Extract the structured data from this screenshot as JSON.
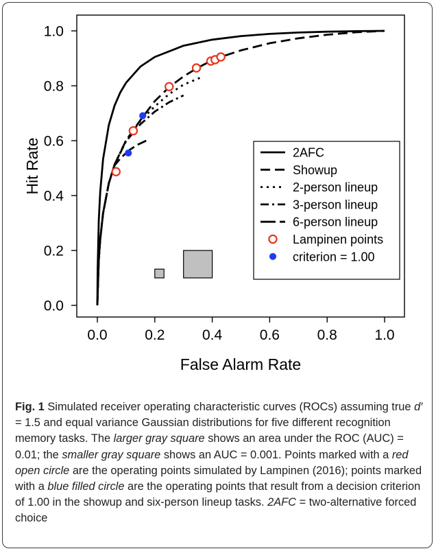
{
  "chart_data": {
    "type": "line",
    "xlabel": "False Alarm Rate",
    "ylabel": "Hit Rate",
    "xlim": [
      0,
      1
    ],
    "ylim": [
      0,
      1
    ],
    "xticks": [
      "0.0",
      "0.2",
      "0.4",
      "0.6",
      "0.8",
      "1.0"
    ],
    "yticks": [
      "0.0",
      "0.2",
      "0.4",
      "0.6",
      "0.8",
      "1.0"
    ],
    "grid": false,
    "legend_position": "center-right",
    "series": [
      {
        "name": "2AFC",
        "style": "solid",
        "x": [
          0,
          0.001,
          0.005,
          0.01,
          0.02,
          0.04,
          0.06,
          0.08,
          0.1,
          0.15,
          0.2,
          0.3,
          0.4,
          0.5,
          0.6,
          0.7,
          0.8,
          0.9,
          1.0
        ],
        "y": [
          0,
          0.126,
          0.31,
          0.413,
          0.533,
          0.657,
          0.728,
          0.776,
          0.811,
          0.87,
          0.905,
          0.946,
          0.968,
          0.981,
          0.989,
          0.994,
          0.997,
          0.999,
          1.0
        ]
      },
      {
        "name": "Showup",
        "style": "dashed",
        "x": [
          0,
          0.005,
          0.01,
          0.02,
          0.04,
          0.06,
          0.1,
          0.15,
          0.2,
          0.25,
          0.3,
          0.35,
          0.4,
          0.43,
          0.5,
          0.6,
          0.7,
          0.8,
          0.9,
          1.0
        ],
        "y": [
          0,
          0.166,
          0.24,
          0.336,
          0.445,
          0.513,
          0.601,
          0.675,
          0.744,
          0.795,
          0.834,
          0.866,
          0.893,
          0.905,
          0.929,
          0.955,
          0.973,
          0.986,
          0.995,
          1.0
        ]
      },
      {
        "name": "2-person lineup",
        "style": "dotted",
        "x": [
          0,
          0.005,
          0.01,
          0.02,
          0.04,
          0.06,
          0.1,
          0.15,
          0.2,
          0.25,
          0.3,
          0.36
        ],
        "y": [
          0,
          0.166,
          0.24,
          0.336,
          0.445,
          0.513,
          0.601,
          0.672,
          0.725,
          0.77,
          0.804,
          0.83
        ]
      },
      {
        "name": "3-person lineup",
        "style": "dashdot",
        "x": [
          0,
          0.005,
          0.01,
          0.02,
          0.04,
          0.06,
          0.1,
          0.15,
          0.2,
          0.25,
          0.3
        ],
        "y": [
          0,
          0.166,
          0.24,
          0.336,
          0.445,
          0.513,
          0.598,
          0.66,
          0.706,
          0.74,
          0.765
        ]
      },
      {
        "name": "6-person lineup",
        "style": "longdash",
        "x": [
          0,
          0.005,
          0.01,
          0.02,
          0.04,
          0.06,
          0.08,
          0.11,
          0.14,
          0.17
        ],
        "y": [
          0,
          0.166,
          0.24,
          0.336,
          0.445,
          0.51,
          0.535,
          0.565,
          0.585,
          0.6
        ]
      }
    ],
    "points": [
      {
        "name": "Lampinen points",
        "marker": "open-circle",
        "color": "#e8361f",
        "x": [
          0.065,
          0.125,
          0.25,
          0.345,
          0.395,
          0.41,
          0.43
        ],
        "y": [
          0.487,
          0.636,
          0.797,
          0.865,
          0.89,
          0.895,
          0.905
        ]
      },
      {
        "name": "criterion = 1.00",
        "marker": "filled-circle",
        "color": "#1f3cf0",
        "x": [
          0.108,
          0.158
        ],
        "y": [
          0.555,
          0.691
        ]
      }
    ],
    "squares": [
      {
        "role": "larger-gray-square",
        "x0": 0.3,
        "x1": 0.4,
        "y0": 0.1,
        "y1": 0.2,
        "fill": "#c0c0c0"
      },
      {
        "role": "smaller-gray-square",
        "x0": 0.2,
        "x1": 0.232,
        "y0": 0.1,
        "y1": 0.132,
        "fill": "#c0c0c0"
      }
    ]
  },
  "caption": {
    "fig_label": "Fig. 1",
    "part1": " Simulated receiver operating characteristic curves (ROCs) assuming true ",
    "dprime": "d′",
    "part2": " = 1.5 and equal variance Gaussian distributions for five different recognition memory tasks. The ",
    "larger_square": "larger gray square",
    "part3": " shows an area under the ROC (AUC) = 0.01; the ",
    "smaller_square": "smaller gray square",
    "part4": " shows an AUC = 0.001. Points marked with a ",
    "red_circle": "red open circle",
    "part5": " are the operating points simulated by Lampinen (2016); points marked with a ",
    "blue_circle": "blue filled circle",
    "part6": " are the operating points that result from a decision criterion of 1.00 in the showup and six-person lineup tasks. ",
    "afc": "2AFC",
    "part7": " = two-alternative forced choice"
  }
}
